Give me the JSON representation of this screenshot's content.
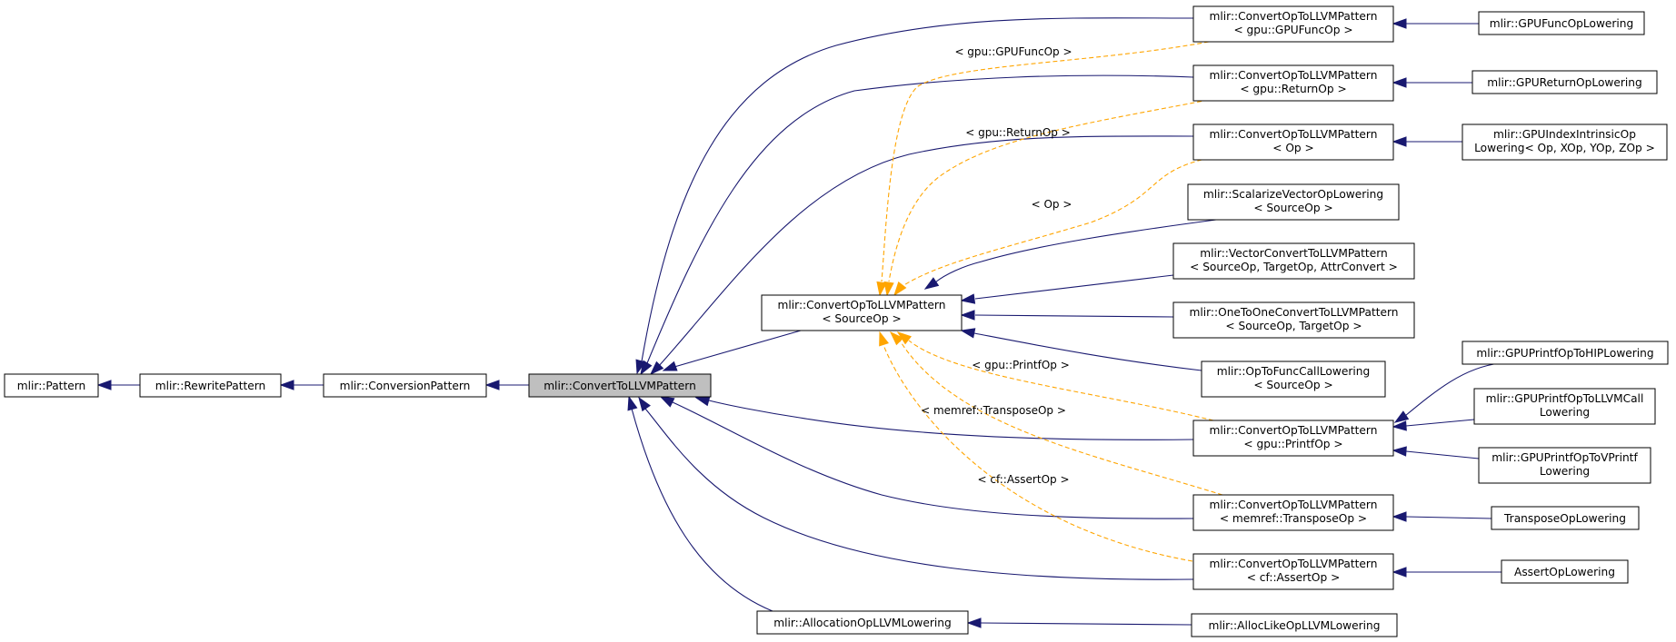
{
  "nodes": {
    "pattern": [
      "mlir::Pattern"
    ],
    "rewrite_pattern": [
      "mlir::RewritePattern"
    ],
    "conversion_pattern": [
      "mlir::ConversionPattern"
    ],
    "convert_to_llvm_pattern": [
      "mlir::ConvertToLLVMPattern"
    ],
    "convert_op_to_llvm_source": [
      "mlir::ConvertOpToLLVMPattern",
      "< SourceOp >"
    ],
    "allocation_op_llvm_lowering": [
      "mlir::AllocationOpLLVMLowering"
    ],
    "convert_gpufuncop": [
      "mlir::ConvertOpToLLVMPattern",
      "< gpu::GPUFuncOp >"
    ],
    "convert_returnop": [
      "mlir::ConvertOpToLLVMPattern",
      "< gpu::ReturnOp >"
    ],
    "convert_op": [
      "mlir::ConvertOpToLLVMPattern",
      "< Op >"
    ],
    "scalarize_vector_op_lowering": [
      "mlir::ScalarizeVectorOpLowering",
      "< SourceOp >"
    ],
    "vector_convert_to_llvm_pattern": [
      "mlir::VectorConvertToLLVMPattern",
      "< SourceOp, TargetOp, AttrConvert >"
    ],
    "one_to_one_convert_to_llvm_pattern": [
      "mlir::OneToOneConvertToLLVMPattern",
      "< SourceOp, TargetOp >"
    ],
    "op_to_func_call_lowering": [
      "mlir::OpToFuncCallLowering",
      "< SourceOp >"
    ],
    "convert_printfop": [
      "mlir::ConvertOpToLLVMPattern",
      "< gpu::PrintfOp >"
    ],
    "convert_transposeop": [
      "mlir::ConvertOpToLLVMPattern",
      "< memref::TransposeOp >"
    ],
    "convert_assertop": [
      "mlir::ConvertOpToLLVMPattern",
      "< cf::AssertOp >"
    ],
    "alloc_like_op_llvm_lowering": [
      "mlir::AllocLikeOpLLVMLowering"
    ],
    "gpu_func_op_lowering": [
      "mlir::GPUFuncOpLowering"
    ],
    "gpu_return_op_lowering": [
      "mlir::GPUReturnOpLowering"
    ],
    "gpu_index_intrinsic_op_lowering": [
      "mlir::GPUIndexIntrinsicOp",
      "Lowering< Op, XOp, YOp, ZOp >"
    ],
    "gpu_printf_op_to_hip_lowering": [
      "mlir::GPUPrintfOpToHIPLowering"
    ],
    "gpu_printf_op_to_llvm_call_lowering": [
      "mlir::GPUPrintfOpToLLVMCall",
      "Lowering"
    ],
    "gpu_printf_op_to_vprintf_lowering": [
      "mlir::GPUPrintfOpToVPrintf",
      "Lowering"
    ],
    "transpose_op_lowering": [
      "TransposeOpLowering"
    ],
    "assert_op_lowering": [
      "AssertOpLowering"
    ]
  },
  "edge_labels": {
    "gpufuncop": "< gpu::GPUFuncOp >",
    "returnop": "< gpu::ReturnOp >",
    "op": "< Op >",
    "printfop": "< gpu::PrintfOp >",
    "transposeop": "< memref::TransposeOp >",
    "assertop": "< cf::AssertOp >"
  },
  "colors": {
    "inheritance_edge": "#191970",
    "template_edge": "#ffa500",
    "current_node_fill": "#bfbfbf"
  }
}
